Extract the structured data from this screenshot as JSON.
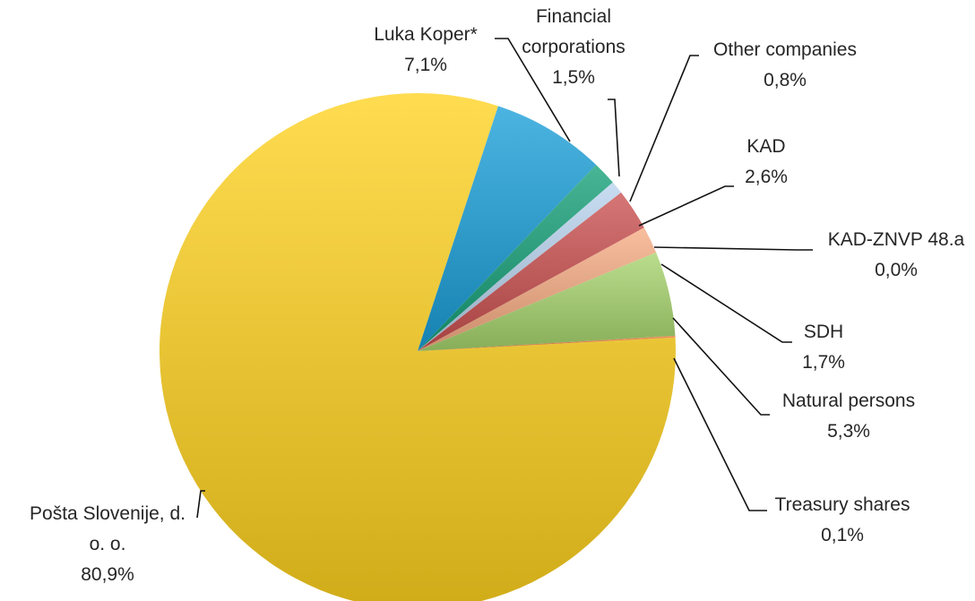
{
  "chart_data": {
    "type": "pie",
    "title": "",
    "slices": [
      {
        "label_lines": [
          "Pošta Slovenije, d.",
          "o. o."
        ],
        "value_label": "80,9%",
        "value": 80.9,
        "color": "#ffd21e"
      },
      {
        "label_lines": [
          "Luka Koper*"
        ],
        "value_label": "7,1%",
        "value": 7.1,
        "color": "#1a9fd8"
      },
      {
        "label_lines": [
          "Financial",
          "corporations"
        ],
        "value_label": "1,5%",
        "value": 1.5,
        "color": "#14a077"
      },
      {
        "label_lines": [
          "Other companies"
        ],
        "value_label": "0,8%",
        "value": 0.8,
        "color": "#b9d3ee"
      },
      {
        "label_lines": [
          "KAD"
        ],
        "value_label": "2,6%",
        "value": 2.6,
        "color": "#cb4f4f"
      },
      {
        "label_lines": [
          "KAD-ZNVP 48.a"
        ],
        "value_label": "0,0%",
        "value": 0.0,
        "color": "#8c6fb0"
      },
      {
        "label_lines": [
          "SDH"
        ],
        "value_label": "1,7%",
        "value": 1.7,
        "color": "#f6ac83"
      },
      {
        "label_lines": [
          "Natural persons"
        ],
        "value_label": "5,3%",
        "value": 5.3,
        "color": "#a6d46d"
      },
      {
        "label_lines": [
          "Treasury shares"
        ],
        "value_label": "0,1%",
        "value": 0.1,
        "color": "#e8772f"
      }
    ]
  }
}
